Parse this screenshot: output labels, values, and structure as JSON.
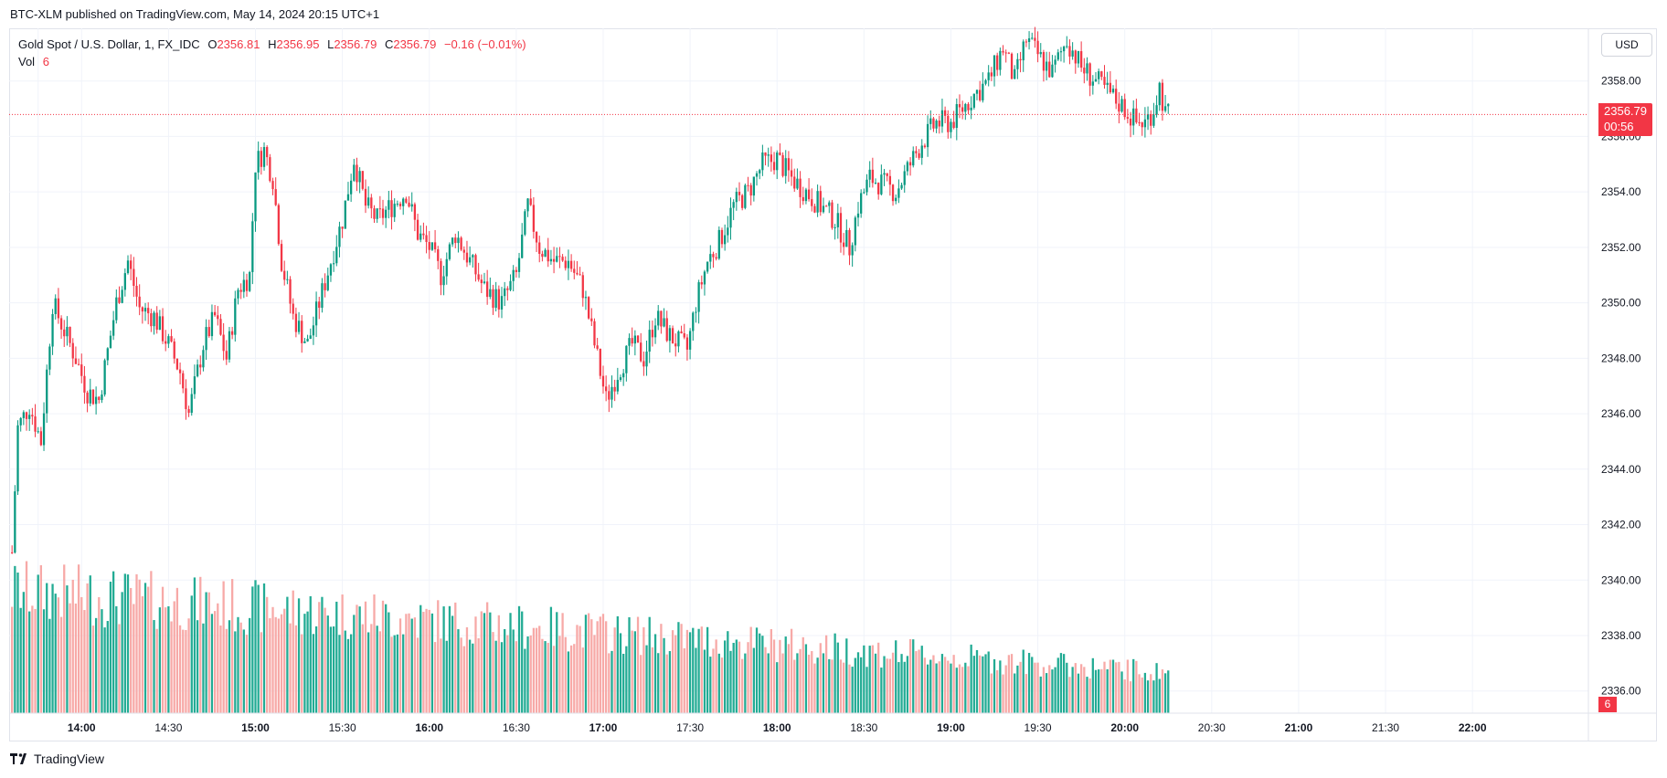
{
  "header": {
    "published_text": "BTC-XLM published on TradingView.com, May 14, 2024 20:15 UTC+1"
  },
  "legend": {
    "symbol": "Gold Spot / U.S. Dollar, 1, FX_IDC",
    "o_label": "O",
    "o_value": "2356.81",
    "h_label": "H",
    "h_value": "2356.95",
    "l_label": "L",
    "l_value": "2356.79",
    "c_label": "C",
    "c_value": "2356.79",
    "change": "−0.16 (−0.01%)",
    "vol_label": "Vol",
    "vol_value": "6"
  },
  "currency_button": "USD",
  "last_price": {
    "price": "2356.79",
    "countdown": "00:56"
  },
  "volume_tag": "6",
  "footer": {
    "brand": "TradingView"
  },
  "colors": {
    "up": "#089981",
    "down": "#f23645",
    "vol_up": "#22ab94",
    "vol_down": "#f7a9a7",
    "grid": "#f0f3fa"
  },
  "chart_data": {
    "type": "candlestick",
    "interval": "1 minute",
    "y_axis": {
      "ticks": [
        2336,
        2338,
        2340,
        2342,
        2344,
        2346,
        2348,
        2350,
        2352,
        2354,
        2356,
        2358
      ],
      "tick_labels": [
        "2336.00",
        "2338.00",
        "2340.00",
        "2342.00",
        "2344.00",
        "2346.00",
        "2348.00",
        "2350.00",
        "2352.00",
        "2354.00",
        "2356.00",
        "2358.00"
      ],
      "range": [
        2335.2,
        2359.9
      ],
      "side": "right"
    },
    "x_axis": {
      "ticks": [
        "13:45",
        "14:00",
        "14:30",
        "15:00",
        "15:30",
        "16:00",
        "16:30",
        "17:00",
        "17:30",
        "18:00",
        "18:30",
        "19:00",
        "19:30",
        "20:00",
        "20:30",
        "21:00",
        "21:30",
        "22:00"
      ],
      "tick_labels": [
        "",
        "14:00",
        "14:30",
        "15:00",
        "15:30",
        "16:00",
        "16:30",
        "17:00",
        "17:30",
        "18:00",
        "18:30",
        "19:00",
        "19:30",
        "20:00",
        "20:30",
        "21:00",
        "21:30",
        "22:00"
      ],
      "bold_ticks": [
        "14:00",
        "15:00",
        "16:00",
        "17:00",
        "18:00",
        "19:00",
        "20:00",
        "21:00",
        "22:00"
      ],
      "range": [
        "13:35",
        "22:40"
      ]
    },
    "grid": true,
    "price_path": [
      [
        "13:36",
        2341.0
      ],
      [
        "13:38",
        2345.5
      ],
      [
        "13:42",
        2346.3
      ],
      [
        "13:46",
        2345.0
      ],
      [
        "13:50",
        2350.0
      ],
      [
        "13:54",
        2349.0
      ],
      [
        "13:58",
        2348.0
      ],
      [
        "14:02",
        2346.8
      ],
      [
        "14:06",
        2346.5
      ],
      [
        "14:12",
        2350.0
      ],
      [
        "14:16",
        2351.5
      ],
      [
        "14:20",
        2349.8
      ],
      [
        "14:25",
        2349.5
      ],
      [
        "14:30",
        2348.5
      ],
      [
        "14:34",
        2347.5
      ],
      [
        "14:37",
        2346.0
      ],
      [
        "14:42",
        2348.5
      ],
      [
        "14:46",
        2349.5
      ],
      [
        "14:50",
        2348.0
      ],
      [
        "14:54",
        2350.5
      ],
      [
        "14:58",
        2351.0
      ],
      [
        "15:00",
        2355.0
      ],
      [
        "15:03",
        2355.5
      ],
      [
        "15:06",
        2354.5
      ],
      [
        "15:09",
        2351.5
      ],
      [
        "15:13",
        2349.5
      ],
      [
        "15:18",
        2348.5
      ],
      [
        "15:22",
        2350.0
      ],
      [
        "15:26",
        2351.5
      ],
      [
        "15:30",
        2353.0
      ],
      [
        "15:34",
        2355.2
      ],
      [
        "15:38",
        2353.5
      ],
      [
        "15:42",
        2353.0
      ],
      [
        "15:47",
        2353.5
      ],
      [
        "15:52",
        2354.0
      ],
      [
        "15:56",
        2352.5
      ],
      [
        "16:00",
        2352.0
      ],
      [
        "16:04",
        2351.0
      ],
      [
        "16:09",
        2352.5
      ],
      [
        "16:14",
        2351.5
      ],
      [
        "16:19",
        2350.5
      ],
      [
        "16:25",
        2350.0
      ],
      [
        "16:30",
        2351.0
      ],
      [
        "16:34",
        2353.5
      ],
      [
        "16:38",
        2352.0
      ],
      [
        "16:43",
        2351.5
      ],
      [
        "16:48",
        2351.5
      ],
      [
        "16:53",
        2350.5
      ],
      [
        "16:57",
        2348.5
      ],
      [
        "17:01",
        2346.5
      ],
      [
        "17:05",
        2347.5
      ],
      [
        "17:10",
        2348.5
      ],
      [
        "17:14",
        2348.0
      ],
      [
        "17:18",
        2349.5
      ],
      [
        "17:23",
        2348.8
      ],
      [
        "17:29",
        2348.3
      ],
      [
        "17:32",
        2350.0
      ],
      [
        "17:36",
        2351.5
      ],
      [
        "17:40",
        2352.2
      ],
      [
        "17:45",
        2353.5
      ],
      [
        "17:50",
        2354.0
      ],
      [
        "17:55",
        2355.0
      ],
      [
        "18:00",
        2355.2
      ],
      [
        "18:05",
        2354.5
      ],
      [
        "18:10",
        2354.0
      ],
      [
        "18:15",
        2353.5
      ],
      [
        "18:20",
        2353.0
      ],
      [
        "18:25",
        2352.0
      ],
      [
        "18:28",
        2353.5
      ],
      [
        "18:32",
        2354.5
      ],
      [
        "18:36",
        2354.3
      ],
      [
        "18:41",
        2354.0
      ],
      [
        "18:46",
        2355.0
      ],
      [
        "18:50",
        2355.8
      ],
      [
        "18:55",
        2356.5
      ],
      [
        "19:00",
        2356.5
      ],
      [
        "19:04",
        2357.0
      ],
      [
        "19:08",
        2357.5
      ],
      [
        "19:13",
        2358.0
      ],
      [
        "19:18",
        2359.2
      ],
      [
        "19:22",
        2358.0
      ],
      [
        "19:26",
        2359.5
      ],
      [
        "19:31",
        2358.8
      ],
      [
        "19:35",
        2358.3
      ],
      [
        "19:40",
        2359.5
      ],
      [
        "19:45",
        2358.5
      ],
      [
        "19:50",
        2358.0
      ],
      [
        "19:55",
        2357.5
      ],
      [
        "20:00",
        2357.0
      ],
      [
        "20:04",
        2356.5
      ],
      [
        "20:07",
        2356.5
      ],
      [
        "20:10",
        2357.0
      ],
      [
        "20:12",
        2357.8
      ],
      [
        "20:14",
        2356.8
      ],
      [
        "20:15",
        2356.79
      ]
    ],
    "volume": {
      "range": [
        0,
        1200
      ],
      "shown_last": 6,
      "start_level": 1000,
      "end_level": 330
    },
    "last_price_line": 2356.79
  }
}
